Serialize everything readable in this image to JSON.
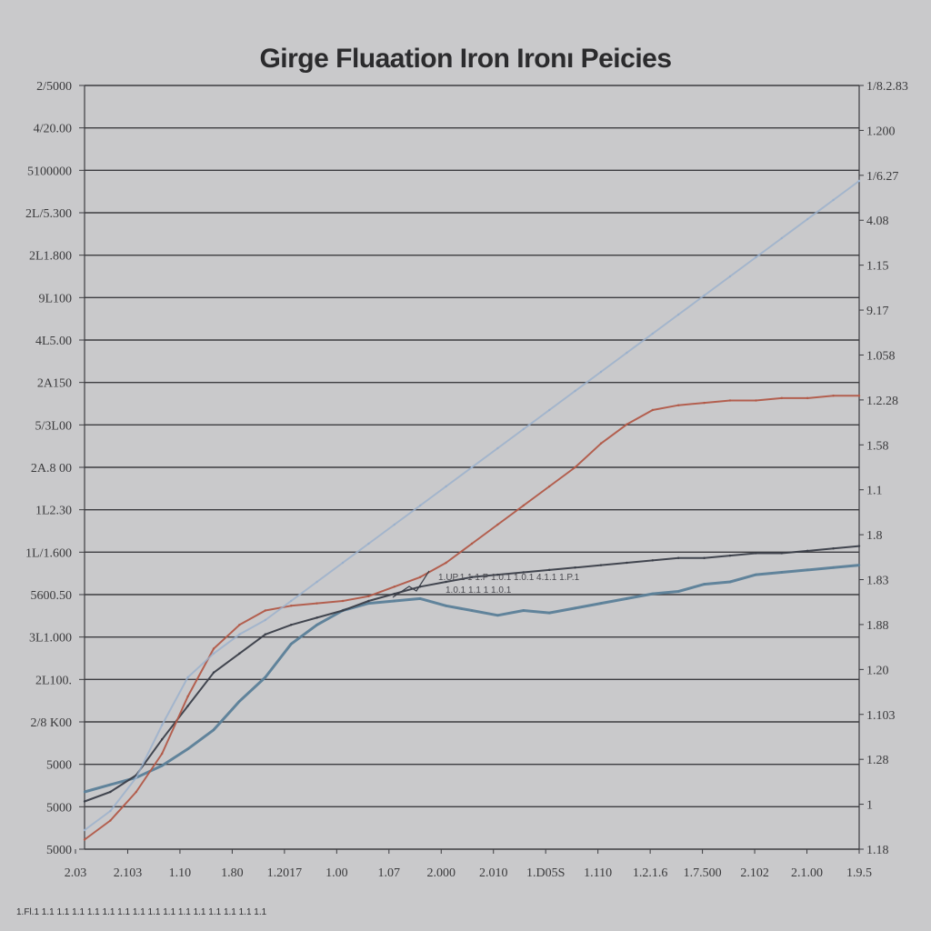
{
  "colors": {
    "background": "#c9c9cb",
    "gridline": "#3c3c40",
    "series_blue": "#5b8098",
    "series_dark": "#3a3e48",
    "series_red": "#b25a48",
    "series_light": "#9ab0cc"
  },
  "chart_data": {
    "type": "line",
    "title": "Girge Fluaation Iron Ironı Peicies",
    "grid": true,
    "legend": "none",
    "y_left_ticks": [
      "2/5000",
      "4/20.00",
      "5100000",
      "2L/5.300",
      "2L1.800",
      "9L100",
      "4L5.00",
      "2A150",
      "5/3L00",
      "2A.8 00",
      "1L2.30",
      "1L/1.600",
      "5600.50",
      "3L1.000",
      "2L100.",
      "2/8 K00",
      "5000",
      "5000",
      "5000"
    ],
    "y_right_ticks": [
      "1/8.2.83",
      "1.200",
      "1/6.27",
      "4.08",
      "1.15",
      "9.17",
      "1.058",
      "1.2.28",
      "1.58",
      "1.1",
      "1.8",
      "1.83",
      "1.88",
      "1.20",
      "1.103",
      "1.28",
      "1",
      "1.18"
    ],
    "x_ticks": [
      "2.03",
      "2.103",
      "1.10",
      "1.80",
      "1.2017",
      "1.00",
      "1.07",
      "2.000",
      "2.010",
      "1.D05S",
      "1.110",
      "1.2.1.6",
      "1.7.500",
      "2.102",
      "2.1.00",
      "1.9.5"
    ],
    "annotation": [
      "1.UP.1 1 1.P 1.0.1 1.0.1 4.1.1 1.P.1",
      "1.0.1 1.1 1 1.0.1"
    ],
    "footnote": "1.Fl.1 1.1 1.1 1.1 1.1 1.1 1.1 1.1 1.1 1.1 1.1 1.1 1.1 1.1 1.1 1.1",
    "series": [
      {
        "color_key": "series_blue",
        "x": [
          0,
          1,
          2,
          3,
          4,
          5,
          6,
          7,
          8,
          9,
          10,
          11,
          12,
          13,
          14,
          15,
          16,
          17,
          18,
          19,
          20,
          21,
          22,
          23,
          24,
          25,
          26,
          27,
          28,
          29,
          30
        ],
        "y": [
          1.2,
          1.35,
          1.5,
          1.75,
          2.1,
          2.5,
          3.1,
          3.6,
          4.3,
          4.7,
          5.0,
          5.15,
          5.2,
          5.25,
          5.1,
          5.0,
          4.9,
          5.0,
          4.95,
          5.05,
          5.15,
          5.25,
          5.35,
          5.4,
          5.55,
          5.6,
          5.75,
          5.8,
          5.85,
          5.9,
          5.95
        ]
      },
      {
        "color_key": "series_dark",
        "x": [
          0,
          1,
          2,
          3,
          4,
          5,
          6,
          7,
          8,
          9,
          10,
          11,
          12,
          13,
          14,
          15,
          16,
          17,
          18,
          19,
          20,
          21,
          22,
          23,
          24,
          25,
          26,
          27,
          28,
          29,
          30
        ],
        "y": [
          1.0,
          1.2,
          1.55,
          2.3,
          3.0,
          3.7,
          4.1,
          4.5,
          4.7,
          4.85,
          5.0,
          5.2,
          5.35,
          5.5,
          5.6,
          5.7,
          5.75,
          5.8,
          5.85,
          5.9,
          5.95,
          6.0,
          6.05,
          6.1,
          6.1,
          6.15,
          6.2,
          6.2,
          6.25,
          6.3,
          6.35
        ]
      },
      {
        "color_key": "series_red",
        "x": [
          0,
          1,
          2,
          3,
          4,
          5,
          6,
          7,
          8,
          9,
          10,
          11,
          12,
          13,
          14,
          15,
          16,
          17,
          18,
          19,
          20,
          21,
          22,
          23,
          24,
          25,
          26,
          27,
          28,
          29,
          30
        ],
        "y": [
          0.2,
          0.6,
          1.2,
          2.0,
          3.2,
          4.2,
          4.7,
          5.0,
          5.1,
          5.15,
          5.2,
          5.3,
          5.5,
          5.7,
          6.0,
          6.4,
          6.8,
          7.2,
          7.6,
          8.0,
          8.5,
          8.9,
          9.2,
          9.3,
          9.35,
          9.4,
          9.4,
          9.45,
          9.45,
          9.5,
          9.5
        ]
      },
      {
        "color_key": "series_light",
        "x": [
          0,
          1,
          2,
          3,
          4,
          5,
          6,
          7,
          8,
          9,
          10,
          11,
          12,
          13,
          14,
          15,
          16,
          17,
          18,
          19,
          20,
          21,
          22,
          23,
          24,
          25,
          26,
          27,
          28,
          29,
          30
        ],
        "y": [
          0.4,
          0.8,
          1.5,
          2.6,
          3.6,
          4.1,
          4.5,
          4.8,
          5.2,
          5.6,
          6.0,
          6.4,
          6.8,
          7.2,
          7.6,
          8.0,
          8.4,
          8.8,
          9.2,
          9.6,
          10.0,
          10.4,
          10.8,
          11.2,
          11.6,
          12.0,
          12.4,
          12.8,
          13.2,
          13.6,
          14.0
        ]
      }
    ]
  }
}
